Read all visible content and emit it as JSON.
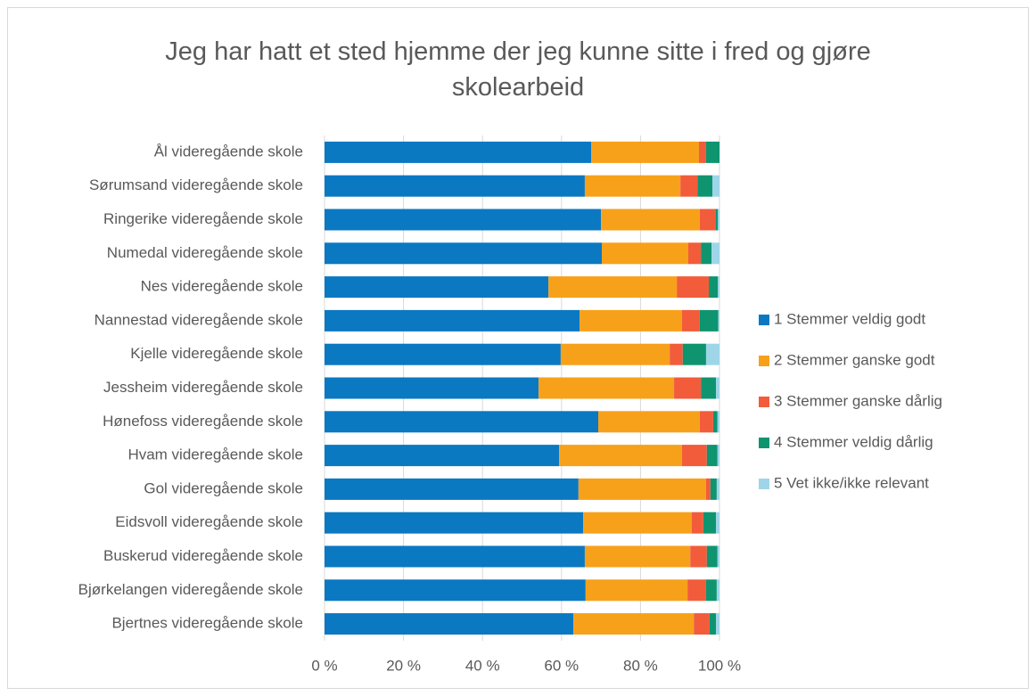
{
  "chart_data": {
    "type": "stacked_barh",
    "title": "Jeg har hatt et sted hjemme der jeg kunne sitte i fred og gjøre skolearbeid",
    "categories": [
      "Ål videregående skole",
      "Sørumsand videregående skole",
      "Ringerike videregående skole",
      "Numedal videregående skole",
      "Nes videregående skole",
      "Nannestad videregående skole",
      "Kjelle videregående skole",
      "Jessheim videregående skole",
      "Hønefoss videregående skole",
      "Hvam videregående skole",
      "Gol videregående skole",
      "Eidsvoll videregående skole",
      "Buskerud videregående skole",
      "Bjørkelangen videregående skole",
      "Bjertnes videregående skole"
    ],
    "series": [
      {
        "name": "1 Stemmer veldig godt",
        "color": "#0b78c2",
        "values": [
          67.5,
          65.9,
          70.0,
          70.2,
          56.7,
          64.6,
          59.8,
          54.2,
          69.3,
          59.4,
          64.3,
          65.5,
          65.9,
          66.1,
          63.0
        ]
      },
      {
        "name": "2 Stemmer ganske godt",
        "color": "#f7a11a",
        "values": [
          27.3,
          24.2,
          25.0,
          21.9,
          32.5,
          25.9,
          27.6,
          34.3,
          25.7,
          31.1,
          32.3,
          27.5,
          26.7,
          25.8,
          30.5
        ]
      },
      {
        "name": "3 Stemmer ganske dårlig",
        "color": "#f25c3b",
        "values": [
          1.8,
          4.3,
          4.1,
          3.2,
          8.1,
          4.5,
          3.3,
          6.8,
          3.4,
          6.3,
          1.1,
          2.9,
          4.2,
          4.7,
          4.0
        ]
      },
      {
        "name": "4 Stemmer veldig dårlig",
        "color": "#0f9470",
        "values": [
          3.4,
          3.8,
          0.5,
          2.7,
          2.3,
          4.7,
          5.9,
          3.8,
          1.1,
          2.7,
          1.6,
          3.2,
          2.7,
          2.7,
          1.6
        ]
      },
      {
        "name": "5 Vet ikke/ikke relevant",
        "color": "#9fd5e8",
        "values": [
          0,
          1.8,
          0.4,
          2.0,
          0.4,
          0.2,
          3.4,
          0.9,
          0.5,
          0.5,
          0.7,
          0.9,
          0.5,
          0.7,
          0.9
        ]
      }
    ],
    "xlim": [
      0,
      100
    ],
    "xticks": [
      {
        "value": 0,
        "label": "0 %"
      },
      {
        "value": 20,
        "label": "20 %"
      },
      {
        "value": 40,
        "label": "40 %"
      },
      {
        "value": 60,
        "label": "60 %"
      },
      {
        "value": 80,
        "label": "80 %"
      },
      {
        "value": 100,
        "label": "100 %"
      }
    ],
    "grid": true,
    "legend": "right"
  }
}
